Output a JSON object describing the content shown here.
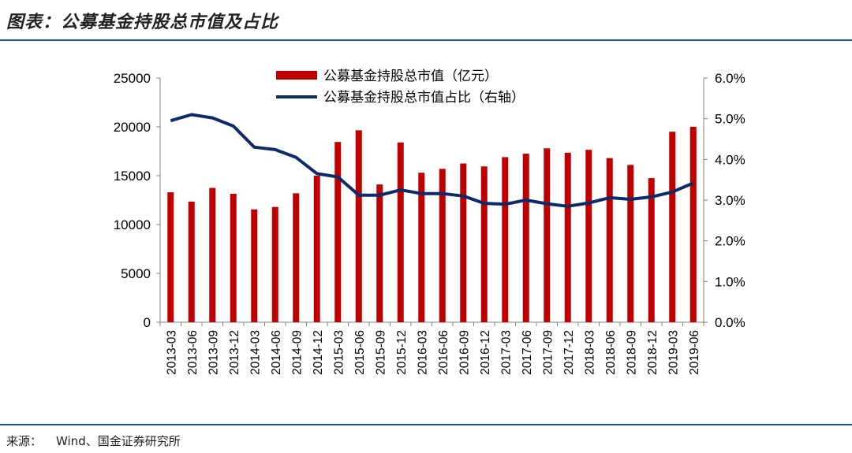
{
  "header": {
    "title": "图表：公募基金持股总市值及占比"
  },
  "chart_data": {
    "type": "bar",
    "categories": [
      "2013-03",
      "2013-06",
      "2013-09",
      "2013-12",
      "2014-03",
      "2014-06",
      "2014-09",
      "2014-12",
      "2015-03",
      "2015-06",
      "2015-09",
      "2015-12",
      "2016-03",
      "2016-06",
      "2016-09",
      "2016-12",
      "2017-03",
      "2017-06",
      "2017-09",
      "2017-12",
      "2018-03",
      "2018-06",
      "2018-09",
      "2018-12",
      "2019-03",
      "2019-06"
    ],
    "series": [
      {
        "name": "公募基金持股总市值（亿元）",
        "type": "bar",
        "axis": "left",
        "color": "#c00000",
        "values": [
          13300,
          12350,
          13750,
          13150,
          11550,
          11800,
          13200,
          15000,
          18450,
          19650,
          14100,
          18400,
          15300,
          15700,
          16250,
          15950,
          16900,
          17250,
          17800,
          17350,
          17650,
          16800,
          16100,
          14750,
          19500,
          20000
        ]
      },
      {
        "name": "公募基金持股总市值占比（右轴）",
        "type": "line",
        "axis": "right",
        "color": "#0d2a6b",
        "values": [
          4.95,
          5.1,
          5.02,
          4.82,
          4.3,
          4.24,
          4.05,
          3.65,
          3.57,
          3.12,
          3.12,
          3.25,
          3.16,
          3.16,
          3.1,
          2.92,
          2.9,
          3.0,
          2.91,
          2.85,
          2.93,
          3.06,
          3.02,
          3.08,
          3.2,
          3.42
        ]
      }
    ],
    "left_axis": {
      "ylim": [
        0,
        25000
      ],
      "ticks": [
        "0",
        "5000",
        "10000",
        "15000",
        "20000",
        "25000"
      ]
    },
    "right_axis": {
      "ylim": [
        0,
        6
      ],
      "ticks": [
        "0.0%",
        "1.0%",
        "2.0%",
        "3.0%",
        "4.0%",
        "5.0%",
        "6.0%"
      ]
    },
    "legend_position": "top-center",
    "grid": false
  },
  "footer": {
    "source_label": "来源：",
    "source_text": "Wind、国金证券研究所"
  }
}
